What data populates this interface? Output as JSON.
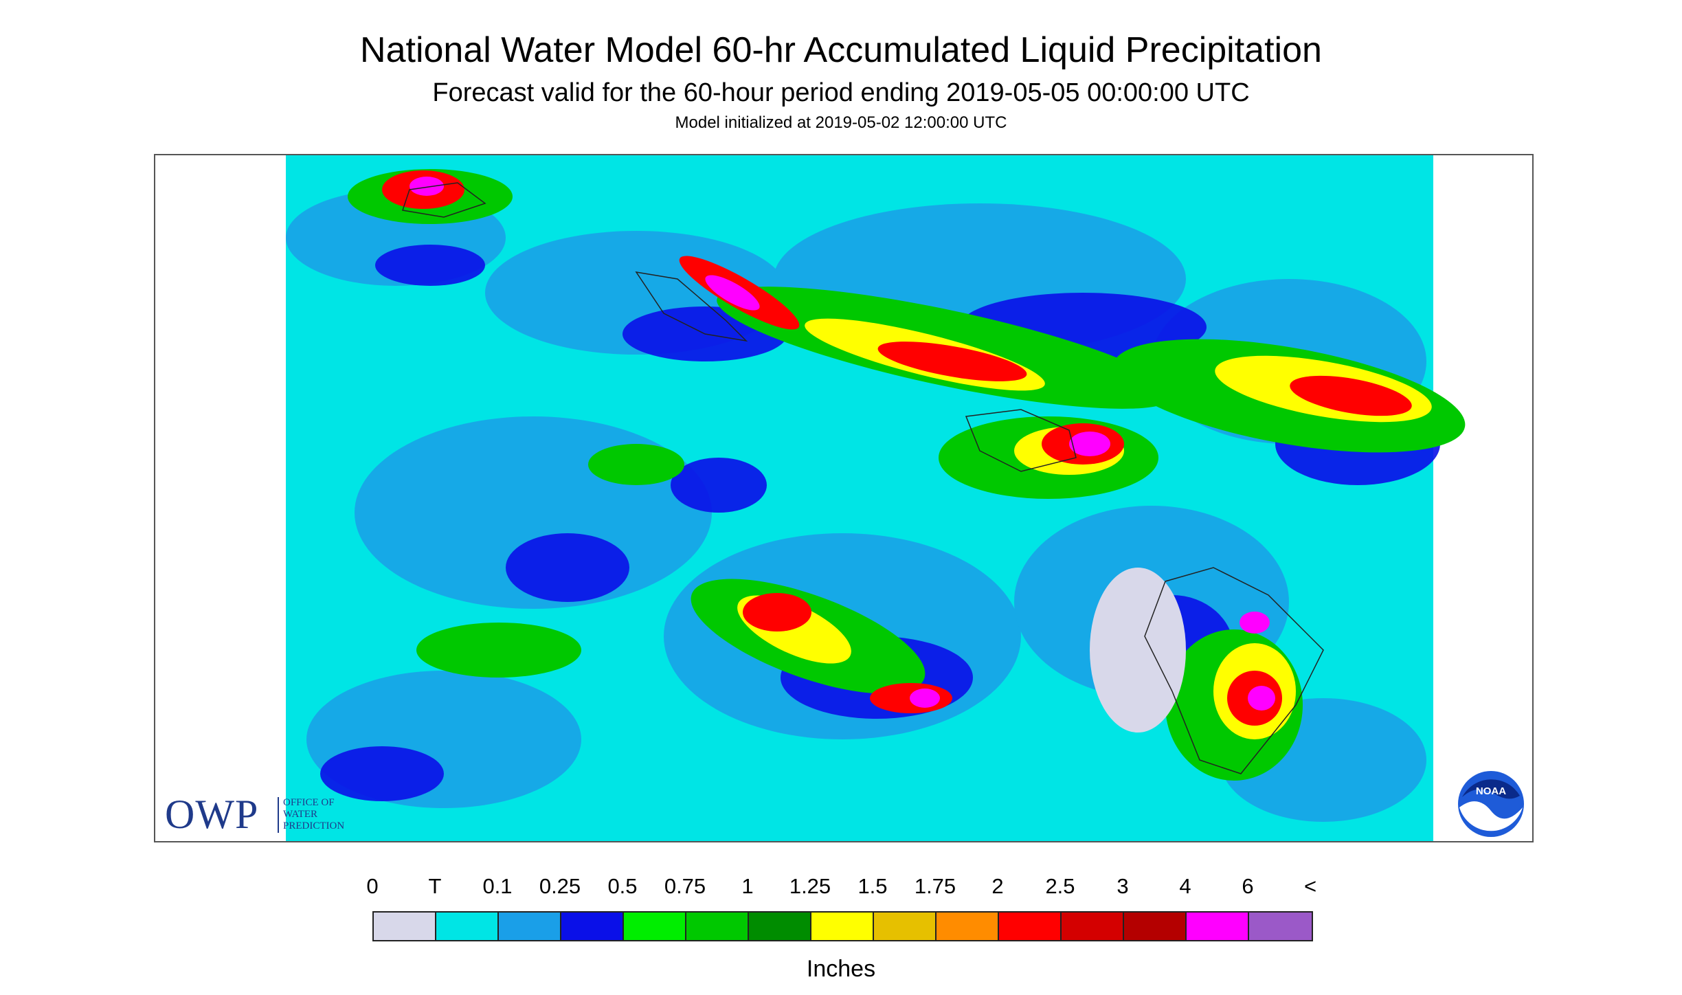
{
  "header": {
    "title": "National Water Model 60-hr Accumulated Liquid Precipitation",
    "subtitle": "Forecast valid for the 60-hour period ending 2019-05-05 00:00:00 UTC",
    "init": "Model initialized at 2019-05-02 12:00:00 UTC"
  },
  "logos": {
    "owp_big": "OWP",
    "owp_small": [
      "OFFICE OF",
      "WATER",
      "PREDICTION"
    ],
    "noaa": "NOAA"
  },
  "legend": {
    "labels": [
      "0",
      "T",
      "0.1",
      "0.25",
      "0.5",
      "0.75",
      "1",
      "1.25",
      "1.5",
      "1.75",
      "2",
      "2.5",
      "3",
      "4",
      "6",
      "<"
    ],
    "colors": [
      "#d8d8ea",
      "#00e5e5",
      "#1a9fe8",
      "#0a10e8",
      "#00ee00",
      "#00c800",
      "#008c00",
      "#ffff00",
      "#e6c000",
      "#ff8c00",
      "#ff0000",
      "#d40000",
      "#b40000",
      "#ff00ff",
      "#9b59c8"
    ],
    "unit": "Inches"
  }
}
